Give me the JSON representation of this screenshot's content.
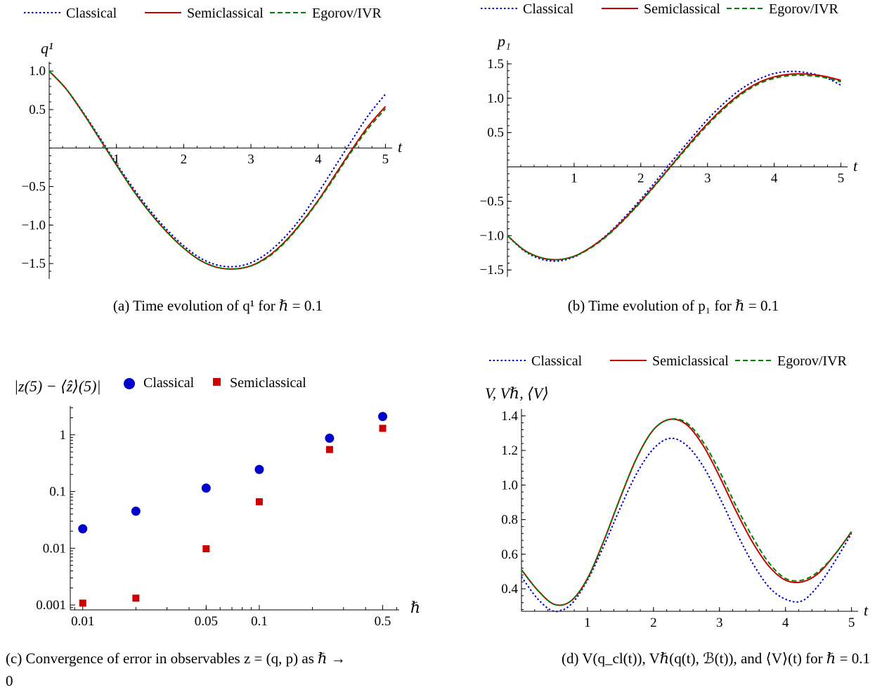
{
  "legend": {
    "classical": "Classical",
    "semiclassical": "Semiclassical",
    "egorov": "Egorov/IVR"
  },
  "colors": {
    "classical": "#0000cc",
    "semiclassical": "#cc0000",
    "egorov": "#008000",
    "axis": "#000000"
  },
  "chart_data": [
    {
      "id": "a",
      "type": "line",
      "caption": "(a)  Time evolution of q¹ for ℏ = 0.1",
      "ylabel": "q¹",
      "xlabel": "t",
      "xlim": [
        0,
        5.1
      ],
      "ylim": [
        -1.7,
        1.12
      ],
      "xticks": [
        1,
        2,
        3,
        4,
        5
      ],
      "yticks": [
        1.0,
        0.5,
        -0.5,
        -1.0,
        -1.5
      ],
      "ytick_labels": [
        "1.0",
        "0.5",
        "−0.5",
        "−1.0",
        "−1.5"
      ],
      "x": [
        0,
        0.25,
        0.5,
        0.75,
        1.0,
        1.25,
        1.5,
        1.75,
        2.0,
        2.25,
        2.5,
        2.75,
        3.0,
        3.25,
        3.5,
        3.75,
        4.0,
        4.25,
        4.5,
        4.75,
        5.0
      ],
      "series": [
        {
          "name": "Classical",
          "key": "classical",
          "values": [
            1.0,
            0.77,
            0.47,
            0.14,
            -0.2,
            -0.52,
            -0.81,
            -1.06,
            -1.27,
            -1.43,
            -1.52,
            -1.54,
            -1.49,
            -1.36,
            -1.16,
            -0.9,
            -0.58,
            -0.24,
            0.1,
            0.43,
            0.7
          ]
        },
        {
          "name": "Semiclassical",
          "key": "semiclassical",
          "values": [
            1.0,
            0.77,
            0.46,
            0.12,
            -0.22,
            -0.55,
            -0.84,
            -1.09,
            -1.3,
            -1.46,
            -1.55,
            -1.57,
            -1.53,
            -1.41,
            -1.22,
            -0.97,
            -0.68,
            -0.35,
            -0.02,
            0.29,
            0.54
          ]
        },
        {
          "name": "Egorov/IVR",
          "key": "egorov",
          "values": [
            1.0,
            0.77,
            0.46,
            0.12,
            -0.22,
            -0.55,
            -0.84,
            -1.09,
            -1.3,
            -1.46,
            -1.55,
            -1.57,
            -1.53,
            -1.42,
            -1.23,
            -0.98,
            -0.69,
            -0.37,
            -0.04,
            0.26,
            0.51
          ]
        }
      ]
    },
    {
      "id": "b",
      "type": "line",
      "caption": "(b)  Time evolution of p₁ for ℏ = 0.1",
      "ylabel": "p₁",
      "xlabel": "t",
      "xlim": [
        0,
        5.1
      ],
      "ylim": [
        -1.6,
        1.55
      ],
      "xticks": [
        1,
        2,
        3,
        4,
        5
      ],
      "yticks": [
        1.5,
        1.0,
        0.5,
        -0.5,
        -1.0,
        -1.5
      ],
      "ytick_labels": [
        "1.5",
        "1.0",
        "0.5",
        "−0.5",
        "−1.0",
        "−1.5"
      ],
      "x": [
        0,
        0.25,
        0.5,
        0.75,
        1.0,
        1.25,
        1.5,
        1.75,
        2.0,
        2.25,
        2.5,
        2.75,
        3.0,
        3.25,
        3.5,
        3.75,
        4.0,
        4.25,
        4.5,
        4.75,
        5.0
      ],
      "series": [
        {
          "name": "Classical",
          "key": "classical",
          "values": [
            -1.0,
            -1.22,
            -1.34,
            -1.37,
            -1.31,
            -1.17,
            -0.98,
            -0.74,
            -0.47,
            -0.18,
            0.12,
            0.41,
            0.69,
            0.93,
            1.13,
            1.27,
            1.36,
            1.39,
            1.37,
            1.31,
            1.19
          ]
        },
        {
          "name": "Semiclassical",
          "key": "semiclassical",
          "values": [
            -1.0,
            -1.21,
            -1.32,
            -1.35,
            -1.3,
            -1.17,
            -0.99,
            -0.76,
            -0.5,
            -0.22,
            0.07,
            0.36,
            0.63,
            0.87,
            1.07,
            1.22,
            1.31,
            1.35,
            1.35,
            1.32,
            1.26
          ]
        },
        {
          "name": "Egorov/IVR",
          "key": "egorov",
          "values": [
            -1.0,
            -1.21,
            -1.32,
            -1.35,
            -1.3,
            -1.18,
            -1.0,
            -0.77,
            -0.51,
            -0.23,
            0.06,
            0.34,
            0.61,
            0.85,
            1.05,
            1.2,
            1.29,
            1.33,
            1.33,
            1.3,
            1.24
          ]
        }
      ]
    },
    {
      "id": "c",
      "type": "scatter",
      "caption": "(c)  Convergence of error in observables z = (q, p) as ℏ → 0",
      "ylabel": "|z(5) − ⟨ẑ⟩(5)|",
      "xlabel": "ℏ",
      "xscale": "log",
      "yscale": "log",
      "xlim": [
        0.0085,
        0.62
      ],
      "ylim": [
        0.00082,
        3.2
      ],
      "xticks": [
        0.01,
        0.05,
        0.1,
        0.5
      ],
      "xtick_labels": [
        "0.01",
        "0.05",
        "0.1",
        "0.5"
      ],
      "yticks": [
        1,
        0.1,
        0.01,
        0.001
      ],
      "ytick_labels": [
        "1",
        "0.1",
        "0.01",
        "0.001"
      ],
      "series": [
        {
          "name": "Classical",
          "key": "classical",
          "marker": "circle",
          "x": [
            0.01,
            0.02,
            0.05,
            0.1,
            0.25,
            0.5
          ],
          "y": [
            0.022,
            0.045,
            0.115,
            0.245,
            0.87,
            2.1
          ]
        },
        {
          "name": "Semiclassical",
          "key": "semiclassical",
          "marker": "square",
          "x": [
            0.01,
            0.02,
            0.05,
            0.1,
            0.25,
            0.5
          ],
          "y": [
            0.00108,
            0.00132,
            0.0098,
            0.066,
            0.55,
            1.3
          ]
        }
      ]
    },
    {
      "id": "d",
      "type": "line",
      "caption": "(d)  V(q_cl(t)), Vℏ(q(t), ℬ(t)), and ⟨V⟩(t) for ℏ = 0.1",
      "ylabel": "V, Vℏ, ⟨V⟩",
      "xlabel": "t",
      "xlim": [
        0,
        5.1
      ],
      "ylim": [
        0.27,
        1.44
      ],
      "xticks": [
        1,
        2,
        3,
        4,
        5
      ],
      "yticks": [
        1.4,
        1.2,
        1.0,
        0.8,
        0.6,
        0.4
      ],
      "ytick_labels": [
        "1.4",
        "1.2",
        "1.0",
        "0.8",
        "0.6",
        "0.4"
      ],
      "x": [
        0,
        0.25,
        0.5,
        0.75,
        1.0,
        1.25,
        1.5,
        1.75,
        2.0,
        2.25,
        2.5,
        2.75,
        3.0,
        3.25,
        3.5,
        3.75,
        4.0,
        4.25,
        4.5,
        4.75,
        5.0
      ],
      "series": [
        {
          "name": "Classical",
          "key": "classical",
          "values": [
            0.47,
            0.34,
            0.27,
            0.31,
            0.45,
            0.65,
            0.87,
            1.07,
            1.21,
            1.27,
            1.23,
            1.11,
            0.93,
            0.73,
            0.55,
            0.41,
            0.34,
            0.33,
            0.42,
            0.56,
            0.72
          ]
        },
        {
          "name": "Semiclassical",
          "key": "semiclassical",
          "values": [
            0.51,
            0.39,
            0.31,
            0.33,
            0.46,
            0.68,
            0.93,
            1.16,
            1.32,
            1.38,
            1.35,
            1.23,
            1.05,
            0.85,
            0.67,
            0.53,
            0.45,
            0.44,
            0.49,
            0.6,
            0.73
          ]
        },
        {
          "name": "Egorov/IVR",
          "key": "egorov",
          "values": [
            0.51,
            0.39,
            0.31,
            0.33,
            0.46,
            0.68,
            0.93,
            1.16,
            1.32,
            1.38,
            1.36,
            1.25,
            1.08,
            0.88,
            0.7,
            0.55,
            0.46,
            0.45,
            0.5,
            0.6,
            0.73
          ]
        }
      ]
    }
  ]
}
